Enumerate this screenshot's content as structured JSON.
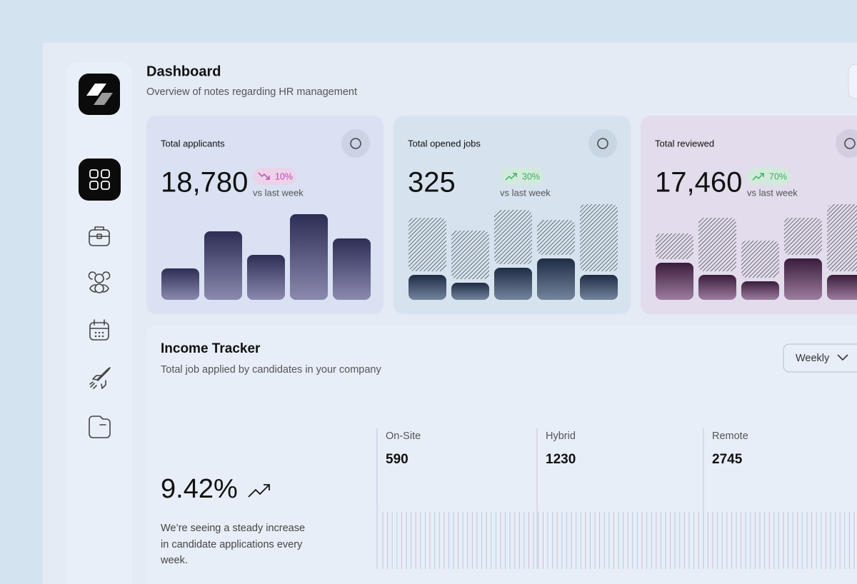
{
  "header": {
    "title": "Dashboard",
    "subtitle": "Overview of notes regarding HR management"
  },
  "stats": [
    {
      "title": "Total applicants",
      "value": "18,780",
      "change": "10%",
      "trend": "down",
      "comparison": "vs last week",
      "bars": [
        44,
        96,
        63,
        120,
        86
      ]
    },
    {
      "title": "Total opened jobs",
      "value": "325",
      "change": "30%",
      "trend": "up",
      "comparison": "vs last week",
      "bars": [
        {
          "base": 35,
          "top": 75
        },
        {
          "base": 24,
          "top": 68
        },
        {
          "base": 45,
          "top": 76
        },
        {
          "base": 58,
          "top": 49
        },
        {
          "base": 35,
          "top": 94
        }
      ]
    },
    {
      "title": "Total reviewed",
      "value": "17,460",
      "change": "70%",
      "trend": "up",
      "comparison": "vs last week",
      "bars": [
        {
          "base": 52,
          "top": 36
        },
        {
          "base": 35,
          "top": 75
        },
        {
          "base": 26,
          "top": 52
        },
        {
          "base": 58,
          "top": 52
        },
        {
          "base": 35,
          "top": 94
        }
      ]
    }
  ],
  "income": {
    "title": "Income Tracker",
    "subtitle": "Total job applied by candidates in your company",
    "period": "Weekly",
    "rate": "9.42%",
    "description": "We’re seeing a steady increase in candidate applications every week.",
    "breakdown": [
      {
        "label": "On-Site",
        "value": "590"
      },
      {
        "label": "Hybrid",
        "value": "1230"
      },
      {
        "label": "Remote",
        "value": "2745"
      }
    ]
  }
}
